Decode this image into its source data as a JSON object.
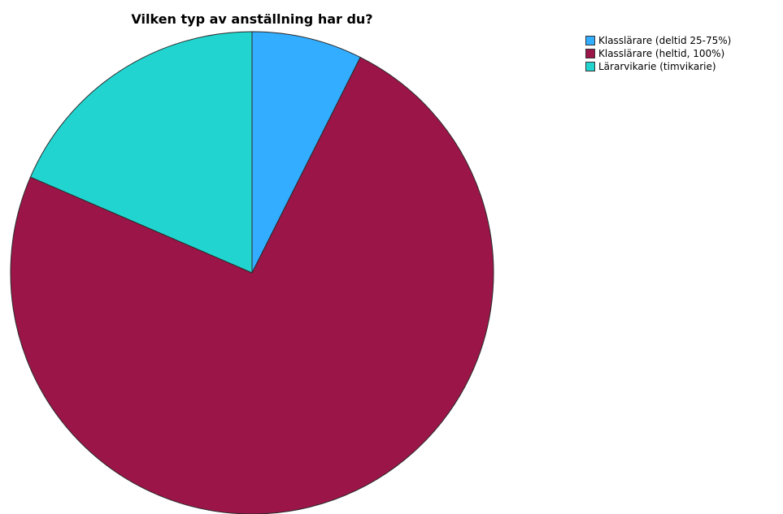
{
  "chart_data": {
    "type": "pie",
    "title": "Vilken typ av anställning har du?",
    "categories": [
      "Klasslärare (deltid 25-75%)",
      "Klasslärare (heltid, 100%)",
      "Lärarvikarie (timvikarie)"
    ],
    "values": [
      7.4,
      74.1,
      18.5
    ],
    "colors": [
      "#33adff",
      "#9c1548",
      "#22d4cf"
    ],
    "legend_position": "top-right",
    "start_angle_deg": 0,
    "direction": "clockwise"
  }
}
